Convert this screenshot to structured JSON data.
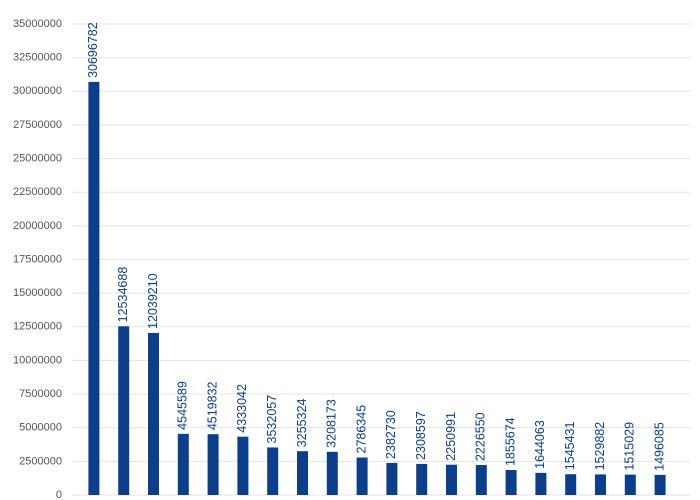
{
  "chart_data": {
    "type": "bar",
    "categories": [
      null,
      null,
      null,
      null,
      null,
      null,
      null,
      null,
      null,
      null,
      null,
      null,
      null,
      null,
      null,
      null,
      null,
      null,
      null,
      null
    ],
    "values": [
      30696782,
      12534688,
      12039210,
      4545589,
      4519832,
      4333042,
      3532057,
      3255324,
      3208173,
      2786345,
      2382730,
      2308597,
      2250991,
      2226550,
      1855674,
      1644063,
      1545431,
      1529882,
      1515029,
      1496085
    ],
    "color": "#0b3f8c",
    "ylim": [
      0,
      35000000
    ],
    "yticks": [
      0,
      2500000,
      5000000,
      7500000,
      10000000,
      12500000,
      15000000,
      17500000,
      20000000,
      22500000,
      25000000,
      27500000,
      30000000,
      32500000,
      35000000
    ],
    "grid": true
  }
}
